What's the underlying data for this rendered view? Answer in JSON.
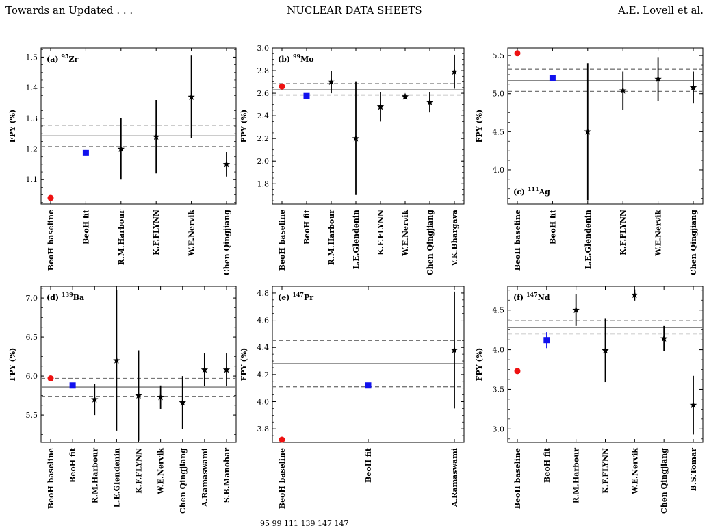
{
  "header": {
    "left": "Towards an Updated . . .",
    "center": "NUCLEAR DATA SHEETS",
    "right": "A.E. Lovell et al."
  },
  "caption": "95 99 111 139 147 147",
  "colors": {
    "baseline": "#ee1111",
    "fit": "#1111ee",
    "exp": "#000000",
    "band": "#777777"
  },
  "chart_data": [
    {
      "type": "scatter",
      "panel": "(a)",
      "mass": "95",
      "element": "Zr",
      "label_pos": "top-left",
      "ylabel": "FPY (%)",
      "ylim": [
        1.02,
        1.53
      ],
      "yticks": [
        1.1,
        1.2,
        1.3,
        1.4,
        1.5
      ],
      "ytick_labels": [
        "1.1",
        "1.2",
        "1.3",
        "1.4",
        "1.5"
      ],
      "categories": [
        "BeoH baseline",
        "BeoH fit",
        "R.M.Harbour",
        "K.F.FLYNN",
        "W.E.Nervik",
        "Chen Qingjiang"
      ],
      "baseline": 1.04,
      "fit": {
        "value": 1.187,
        "err": 0.01
      },
      "experiments": [
        {
          "cat": 2,
          "value": 1.2,
          "err": 0.1
        },
        {
          "cat": 3,
          "value": 1.24,
          "err": 0.12
        },
        {
          "cat": 4,
          "value": 1.37,
          "err": 0.135
        },
        {
          "cat": 5,
          "value": 1.15,
          "err": 0.04
        }
      ],
      "mean": 1.243,
      "band": [
        1.208,
        1.278
      ]
    },
    {
      "type": "scatter",
      "panel": "(b)",
      "mass": "99",
      "element": "Mo",
      "label_pos": "top-left",
      "ylabel": "FPY (%)",
      "ylim": [
        1.62,
        3.0
      ],
      "yticks": [
        1.8,
        2.0,
        2.2,
        2.4,
        2.6,
        2.8,
        3.0
      ],
      "ytick_labels": [
        "1.8",
        "2.0",
        "2.2",
        "2.4",
        "2.6",
        "2.8",
        "3.0"
      ],
      "categories": [
        "BeoH baseline",
        "BeoH fit",
        "R.M.Harbour",
        "L.E.Glendenin",
        "K.F.FLYNN",
        "W.E.Nervik",
        "Chen Qingjiang",
        "V.K.Bhargava"
      ],
      "baseline": 2.66,
      "fit": {
        "value": 2.575,
        "err": 0.01
      },
      "experiments": [
        {
          "cat": 2,
          "value": 2.7,
          "err": 0.1
        },
        {
          "cat": 3,
          "value": 2.2,
          "err": 0.5
        },
        {
          "cat": 4,
          "value": 2.48,
          "err": 0.13
        },
        {
          "cat": 5,
          "value": 2.57,
          "err": 0.02
        },
        {
          "cat": 6,
          "value": 2.52,
          "err": 0.09
        },
        {
          "cat": 7,
          "value": 2.79,
          "err": 0.15
        }
      ],
      "mean": 2.63,
      "band": [
        2.585,
        2.685
      ]
    },
    {
      "type": "scatter",
      "panel": "(c)",
      "mass": "111",
      "element": "Ag",
      "label_pos": "bottom-left",
      "ylabel": "FPY (%)",
      "ylim": [
        3.55,
        5.6
      ],
      "yticks": [
        4.0,
        4.5,
        5.0,
        5.5
      ],
      "ytick_labels": [
        "4.0",
        "4.5",
        "5.0",
        "5.5"
      ],
      "categories": [
        "BeoH baseline",
        "BeoH fit",
        "L.E.Glendenin",
        "K.F.FLYNN",
        "W.E.Nervik",
        "Chen Qingjiang"
      ],
      "baseline": 5.53,
      "fit": {
        "value": 5.2,
        "err": 0.02
      },
      "experiments": [
        {
          "cat": 2,
          "value": 4.5,
          "err": 0.9
        },
        {
          "cat": 3,
          "value": 5.04,
          "err": 0.25
        },
        {
          "cat": 4,
          "value": 5.19,
          "err": 0.29
        },
        {
          "cat": 5,
          "value": 5.08,
          "err": 0.21
        }
      ],
      "mean": 5.17,
      "band": [
        5.03,
        5.32
      ]
    },
    {
      "type": "scatter",
      "panel": "(d)",
      "mass": "139",
      "element": "Ba",
      "label_pos": "top-left",
      "ylabel": "FPY (%)",
      "ylim": [
        5.15,
        7.15
      ],
      "yticks": [
        5.5,
        6.0,
        6.5,
        7.0
      ],
      "ytick_labels": [
        "5.5",
        "6.0",
        "6.5",
        "7.0"
      ],
      "categories": [
        "BeoH baseline",
        "BeoH fit",
        "R.M.Harbour",
        "L.E.Glendenin",
        "K.F.FLYNN",
        "W.E.Nervik",
        "Chen Qingjiang",
        "A.Ramaswami",
        "S.B.Manohar"
      ],
      "baseline": 5.97,
      "fit": {
        "value": 5.88,
        "err": 0.02
      },
      "experiments": [
        {
          "cat": 2,
          "value": 5.7,
          "err": 0.2
        },
        {
          "cat": 3,
          "value": 6.2,
          "err": 0.9
        },
        {
          "cat": 4,
          "value": 5.75,
          "err": 0.58
        },
        {
          "cat": 5,
          "value": 5.73,
          "err": 0.15
        },
        {
          "cat": 6,
          "value": 5.66,
          "err": 0.34
        },
        {
          "cat": 7,
          "value": 6.08,
          "err": 0.21
        },
        {
          "cat": 8,
          "value": 6.08,
          "err": 0.21
        }
      ],
      "mean": 5.86,
      "band": [
        5.74,
        5.97
      ]
    },
    {
      "type": "scatter",
      "panel": "(e)",
      "mass": "147",
      "element": "Pr",
      "label_pos": "top-left",
      "ylabel": "FPY (%)",
      "ylim": [
        3.7,
        4.85
      ],
      "yticks": [
        3.8,
        4.0,
        4.2,
        4.4,
        4.6,
        4.8
      ],
      "ytick_labels": [
        "3.8",
        "4.0",
        "4.2",
        "4.4",
        "4.6",
        "4.8"
      ],
      "categories": [
        "BeoH baseline",
        "BeoH fit",
        "A.Ramaswami"
      ],
      "baseline": 3.72,
      "fit": {
        "value": 4.12,
        "err": 0.01
      },
      "experiments": [
        {
          "cat": 2,
          "value": 4.38,
          "err": 0.43
        }
      ],
      "mean": 4.28,
      "band": [
        4.11,
        4.45
      ]
    },
    {
      "type": "scatter",
      "panel": "(f)",
      "mass": "147",
      "element": "Nd",
      "label_pos": "top-left",
      "ylabel": "FPY (%)",
      "ylim": [
        2.83,
        4.8
      ],
      "yticks": [
        3.0,
        3.5,
        4.0,
        4.5
      ],
      "ytick_labels": [
        "3.0",
        "3.5",
        "4.0",
        "4.5"
      ],
      "categories": [
        "BeoH baseline",
        "BeoH fit",
        "R.M.Harbour",
        "K.F.FLYNN",
        "W.E.Nervik",
        "Chen Qingjiang",
        "B.S.Tomar"
      ],
      "baseline": 3.73,
      "fit": {
        "value": 4.12,
        "err": 0.1
      },
      "experiments": [
        {
          "cat": 2,
          "value": 4.5,
          "err": 0.2
        },
        {
          "cat": 3,
          "value": 3.99,
          "err": 0.4
        },
        {
          "cat": 4,
          "value": 4.69,
          "err": 0.07
        },
        {
          "cat": 5,
          "value": 4.14,
          "err": 0.16
        },
        {
          "cat": 6,
          "value": 3.3,
          "err": 0.37
        }
      ],
      "mean": 4.28,
      "band": [
        4.2,
        4.37
      ]
    }
  ]
}
